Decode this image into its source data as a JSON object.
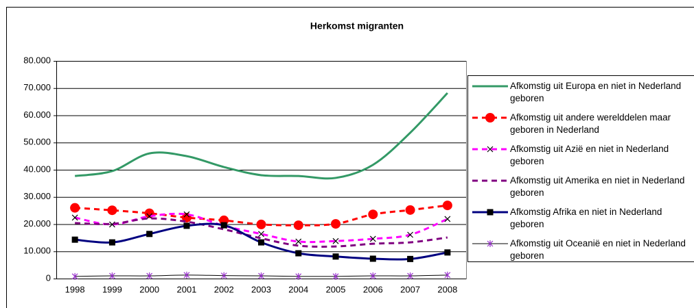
{
  "chart_data": {
    "type": "line",
    "title": "Herkomst migranten",
    "categories": [
      "1998",
      "1999",
      "2000",
      "2001",
      "2002",
      "2003",
      "2004",
      "2005",
      "2006",
      "2007",
      "2008"
    ],
    "ylim": [
      0,
      80000
    ],
    "yticks": [
      0,
      {
        "value": 10000,
        "label": "10.000"
      },
      {
        "value": 20000,
        "label": "20.000"
      },
      {
        "value": 30000,
        "label": "30.000"
      },
      {
        "value": 40000,
        "label": "40.000"
      },
      {
        "value": 50000,
        "label": "50.000"
      },
      {
        "value": 60000,
        "label": "60.000"
      },
      {
        "value": 70000,
        "label": "70.000"
      },
      {
        "value": 80000,
        "label": "80.000"
      }
    ],
    "grid": true,
    "series": [
      {
        "name": "Afkomstig uit Europa en niet in Nederland geboren",
        "color": "#339966",
        "values": [
          37700,
          39500,
          46000,
          45000,
          41000,
          38000,
          37700,
          37000,
          41800,
          53600,
          68200
        ]
      },
      {
        "name": "Afkomstig uit andere werelddelen maar geboren in Nederland",
        "color": "#ff0000",
        "values": [
          26000,
          25100,
          24000,
          22400,
          21400,
          19900,
          19600,
          20100,
          23600,
          25200,
          26900
        ]
      },
      {
        "name": "Afkomstig uit Azië en niet in Nederland geboren",
        "color": "#ff00ff",
        "values": [
          22400,
          19900,
          22900,
          23600,
          19400,
          16400,
          13600,
          13800,
          14600,
          16100,
          21900
        ]
      },
      {
        "name": "Afkomstig uit Amerika en niet in Nederland geboren",
        "color": "#800080",
        "values": [
          20400,
          20100,
          22100,
          20900,
          18100,
          14800,
          12100,
          11800,
          12800,
          13300,
          15100
        ]
      },
      {
        "name": "Afkomstig Afrika en niet in Nederland geboren",
        "color": "#000080",
        "values": [
          14300,
          13300,
          16400,
          19400,
          19600,
          13300,
          9300,
          8100,
          7300,
          7200,
          9600
        ]
      },
      {
        "name": "Afkomstig uit Oceanië en niet in Nederland geboren",
        "color": "#000000",
        "values": [
          800,
          1000,
          1000,
          1300,
          1100,
          1000,
          800,
          800,
          1000,
          1000,
          1300
        ]
      }
    ]
  }
}
